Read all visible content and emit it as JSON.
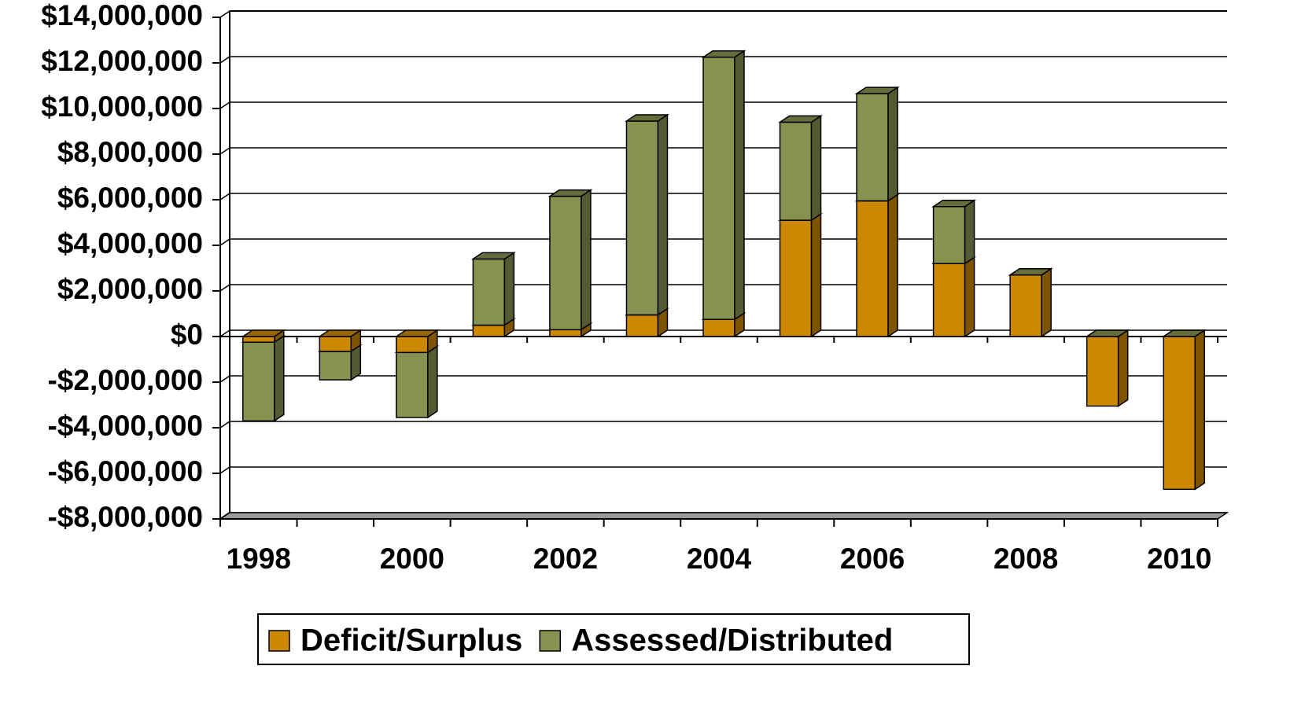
{
  "chart_data": {
    "type": "bar3d_stacked",
    "categories": [
      "1998",
      null,
      "2000",
      null,
      "2002",
      null,
      "2004",
      null,
      "2006",
      null,
      "2008",
      null,
      "2010"
    ],
    "series": [
      {
        "name": "Deficit/Surplus",
        "color": "#CC8800",
        "values": [
          -250000,
          -650000,
          -700000,
          500000,
          300000,
          950000,
          750000,
          5100000,
          5950000,
          3200000,
          2700000,
          -3050000,
          -6700000
        ]
      },
      {
        "name": "Assessed/Distributed",
        "color": "#879150",
        "values": [
          -3450000,
          -1250000,
          -2850000,
          2900000,
          5850000,
          8500000,
          11500000,
          4300000,
          4700000,
          2500000,
          0,
          0,
          0
        ]
      }
    ],
    "ylim": [
      -8000000,
      14000000
    ],
    "yticks": [
      {
        "value": -8000000,
        "label": "-$8,000,000"
      },
      {
        "value": -6000000,
        "label": "-$6,000,000"
      },
      {
        "value": -4000000,
        "label": "-$4,000,000"
      },
      {
        "value": -2000000,
        "label": "-$2,000,000"
      },
      {
        "value": 0,
        "label": "$0"
      },
      {
        "value": 2000000,
        "label": "$2,000,000"
      },
      {
        "value": 4000000,
        "label": "$4,000,000"
      },
      {
        "value": 6000000,
        "label": "$6,000,000"
      },
      {
        "value": 8000000,
        "label": "$8,000,000"
      },
      {
        "value": 10000000,
        "label": "$10,000,000"
      },
      {
        "value": 12000000,
        "label": "$12,000,000"
      },
      {
        "value": 14000000,
        "label": "$14,000,000"
      }
    ],
    "grid": true,
    "legend": "bottom"
  }
}
